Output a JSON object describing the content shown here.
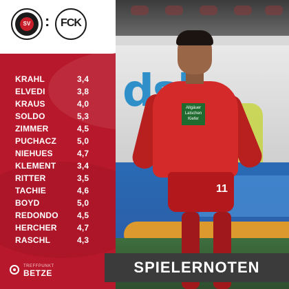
{
  "header": {
    "home_logo_text": "SV",
    "vs_separator": ":",
    "away_logo_text": "FCK"
  },
  "grades": [
    {
      "name": "KRAHL",
      "value": "3,4"
    },
    {
      "name": "ELVEDI",
      "value": "3,8"
    },
    {
      "name": "KRAUS",
      "value": "4,0"
    },
    {
      "name": "SOLDO",
      "value": "5,3"
    },
    {
      "name": "ZIMMER",
      "value": "4,5"
    },
    {
      "name": "PUCHACZ",
      "value": "5,0"
    },
    {
      "name": "NIEHUES",
      "value": "4,7"
    },
    {
      "name": "KLEMENT",
      "value": "3,4"
    },
    {
      "name": "RITTER",
      "value": "3,5"
    },
    {
      "name": "TACHIE",
      "value": "4,6"
    },
    {
      "name": "BOYD",
      "value": "5,0"
    },
    {
      "name": "REDONDO",
      "value": "4,5"
    },
    {
      "name": "HERCHER",
      "value": "4,7"
    },
    {
      "name": "RASCHL",
      "value": "4,3"
    }
  ],
  "photo": {
    "board_word": "dsk",
    "shirt_number": "11",
    "sponsor": "Allgäuer Latschen Kiefer"
  },
  "title": "SPIELERNOTEN",
  "brand": {
    "small": "TREFFPUNKT",
    "big": "BETZE"
  },
  "colors": {
    "panel": "#b7182b",
    "title_bg": "#3b3b3b",
    "text": "#ffffff"
  }
}
